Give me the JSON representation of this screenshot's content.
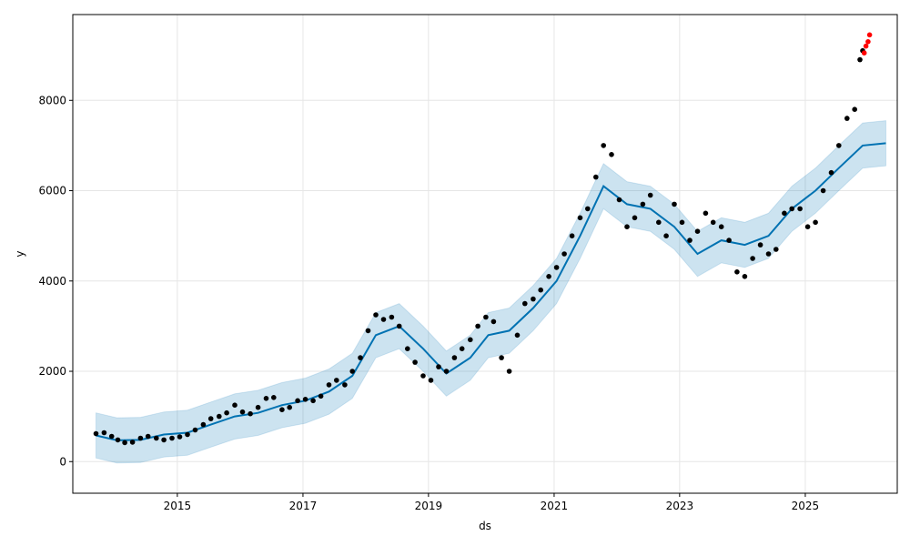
{
  "chart_data": {
    "type": "scatter",
    "title": "",
    "xlabel": "ds",
    "ylabel": "y",
    "xlim": [
      "2013-05-03",
      "2026-06-20"
    ],
    "ylim": [
      -700,
      9900
    ],
    "x_ticks": [
      "2015",
      "2017",
      "2019",
      "2021",
      "2023",
      "2025"
    ],
    "y_ticks": [
      0,
      2000,
      4000,
      6000,
      8000
    ],
    "grid": true,
    "legend": "none",
    "colors": {
      "observed": "#000000",
      "recent": "#ff0000",
      "forecast": "#0072b2",
      "band": "#0072b2",
      "grid": "#e6e6e6"
    },
    "series": [
      {
        "role": "observed",
        "points": [
          [
            "2013-09-15",
            620
          ],
          [
            "2013-11-01",
            640
          ],
          [
            "2013-12-15",
            560
          ],
          [
            "2014-01-20",
            480
          ],
          [
            "2014-03-01",
            420
          ],
          [
            "2014-04-15",
            430
          ],
          [
            "2014-06-01",
            520
          ],
          [
            "2014-07-15",
            560
          ],
          [
            "2014-09-01",
            520
          ],
          [
            "2014-10-15",
            480
          ],
          [
            "2014-12-01",
            520
          ],
          [
            "2015-01-15",
            550
          ],
          [
            "2015-03-01",
            600
          ],
          [
            "2015-04-15",
            700
          ],
          [
            "2015-06-01",
            820
          ],
          [
            "2015-07-15",
            950
          ],
          [
            "2015-09-01",
            1000
          ],
          [
            "2015-10-15",
            1080
          ],
          [
            "2015-12-01",
            1250
          ],
          [
            "2016-01-15",
            1100
          ],
          [
            "2016-03-01",
            1060
          ],
          [
            "2016-04-15",
            1200
          ],
          [
            "2016-06-01",
            1400
          ],
          [
            "2016-07-15",
            1420
          ],
          [
            "2016-09-01",
            1150
          ],
          [
            "2016-10-15",
            1200
          ],
          [
            "2016-12-01",
            1350
          ],
          [
            "2017-01-15",
            1380
          ],
          [
            "2017-03-01",
            1350
          ],
          [
            "2017-04-15",
            1450
          ],
          [
            "2017-06-01",
            1700
          ],
          [
            "2017-07-15",
            1800
          ],
          [
            "2017-09-01",
            1700
          ],
          [
            "2017-10-15",
            2000
          ],
          [
            "2017-12-01",
            2300
          ],
          [
            "2018-01-15",
            2900
          ],
          [
            "2018-03-01",
            3250
          ],
          [
            "2018-04-15",
            3150
          ],
          [
            "2018-06-01",
            3200
          ],
          [
            "2018-07-15",
            3000
          ],
          [
            "2018-09-01",
            2500
          ],
          [
            "2018-10-15",
            2200
          ],
          [
            "2018-12-01",
            1900
          ],
          [
            "2019-01-15",
            1800
          ],
          [
            "2019-03-01",
            2100
          ],
          [
            "2019-04-15",
            2000
          ],
          [
            "2019-06-01",
            2300
          ],
          [
            "2019-07-15",
            2500
          ],
          [
            "2019-09-01",
            2700
          ],
          [
            "2019-10-15",
            3000
          ],
          [
            "2019-12-01",
            3200
          ],
          [
            "2020-01-15",
            3100
          ],
          [
            "2020-03-01",
            2300
          ],
          [
            "2020-04-15",
            2000
          ],
          [
            "2020-06-01",
            2800
          ],
          [
            "2020-07-15",
            3500
          ],
          [
            "2020-09-01",
            3600
          ],
          [
            "2020-10-15",
            3800
          ],
          [
            "2020-12-01",
            4100
          ],
          [
            "2021-01-15",
            4300
          ],
          [
            "2021-03-01",
            4600
          ],
          [
            "2021-04-15",
            5000
          ],
          [
            "2021-06-01",
            5400
          ],
          [
            "2021-07-15",
            5600
          ],
          [
            "2021-09-01",
            6300
          ],
          [
            "2021-10-15",
            7000
          ],
          [
            "2021-12-01",
            6800
          ],
          [
            "2022-01-15",
            5800
          ],
          [
            "2022-03-01",
            5200
          ],
          [
            "2022-04-15",
            5400
          ],
          [
            "2022-06-01",
            5700
          ],
          [
            "2022-07-15",
            5900
          ],
          [
            "2022-09-01",
            5300
          ],
          [
            "2022-10-15",
            5000
          ],
          [
            "2022-12-01",
            5700
          ],
          [
            "2023-01-15",
            5300
          ],
          [
            "2023-03-01",
            4900
          ],
          [
            "2023-04-15",
            5100
          ],
          [
            "2023-06-01",
            5500
          ],
          [
            "2023-07-15",
            5300
          ],
          [
            "2023-09-01",
            5200
          ],
          [
            "2023-10-15",
            4900
          ],
          [
            "2023-12-01",
            4200
          ],
          [
            "2024-01-15",
            4100
          ],
          [
            "2024-03-01",
            4500
          ],
          [
            "2024-04-15",
            4800
          ],
          [
            "2024-06-01",
            4600
          ],
          [
            "2024-07-15",
            4700
          ],
          [
            "2024-09-01",
            5500
          ],
          [
            "2024-10-15",
            5600
          ],
          [
            "2024-12-01",
            5600
          ],
          [
            "2025-01-15",
            5200
          ],
          [
            "2025-03-01",
            5300
          ],
          [
            "2025-04-15",
            6000
          ],
          [
            "2025-06-01",
            6400
          ],
          [
            "2025-07-15",
            7000
          ],
          [
            "2025-09-01",
            7600
          ],
          [
            "2025-10-15",
            7800
          ],
          [
            "2025-11-15",
            8900
          ],
          [
            "2025-12-01",
            9100
          ]
        ]
      },
      {
        "role": "recent",
        "points": [
          [
            "2025-12-10",
            9050
          ],
          [
            "2025-12-20",
            9200
          ],
          [
            "2026-01-01",
            9300
          ],
          [
            "2026-01-10",
            9450
          ]
        ]
      },
      {
        "role": "forecast",
        "points": [
          [
            "2013-09-15",
            580
          ],
          [
            "2014-01-15",
            470
          ],
          [
            "2014-06-01",
            480
          ],
          [
            "2014-10-15",
            600
          ],
          [
            "2015-03-01",
            640
          ],
          [
            "2015-07-15",
            820
          ],
          [
            "2015-12-01",
            1000
          ],
          [
            "2016-04-15",
            1080
          ],
          [
            "2016-09-01",
            1250
          ],
          [
            "2017-01-15",
            1350
          ],
          [
            "2017-06-01",
            1550
          ],
          [
            "2017-10-15",
            1900
          ],
          [
            "2018-03-01",
            2800
          ],
          [
            "2018-07-15",
            3000
          ],
          [
            "2018-12-01",
            2500
          ],
          [
            "2019-04-15",
            1950
          ],
          [
            "2019-09-01",
            2300
          ],
          [
            "2019-12-15",
            2800
          ],
          [
            "2020-04-15",
            2900
          ],
          [
            "2020-09-01",
            3400
          ],
          [
            "2021-01-15",
            4000
          ],
          [
            "2021-06-01",
            5000
          ],
          [
            "2021-10-15",
            6100
          ],
          [
            "2022-03-01",
            5700
          ],
          [
            "2022-07-15",
            5600
          ],
          [
            "2022-12-01",
            5200
          ],
          [
            "2023-04-15",
            4600
          ],
          [
            "2023-09-01",
            4900
          ],
          [
            "2024-01-15",
            4800
          ],
          [
            "2024-06-01",
            5000
          ],
          [
            "2024-10-15",
            5600
          ],
          [
            "2025-03-01",
            6000
          ],
          [
            "2025-07-15",
            6500
          ],
          [
            "2025-12-01",
            7000
          ],
          [
            "2026-04-15",
            7050
          ]
        ],
        "band_width": 1000
      }
    ]
  }
}
